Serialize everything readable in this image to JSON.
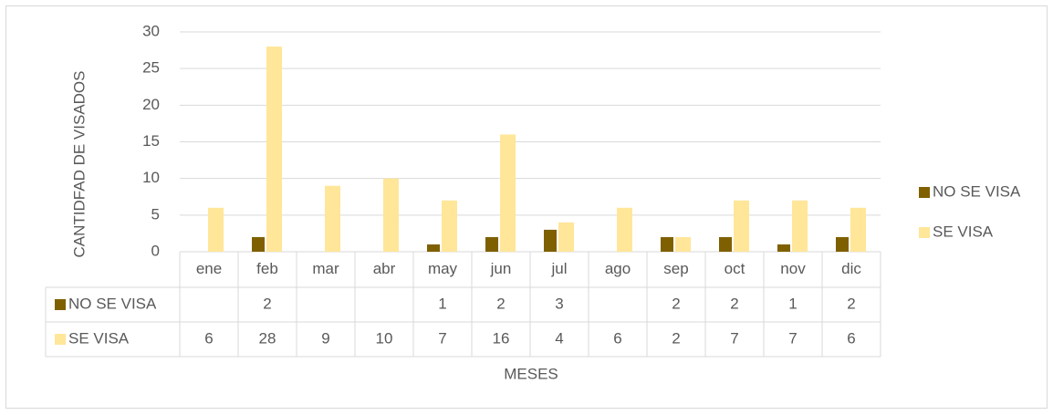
{
  "chart_data": {
    "type": "bar",
    "y_label": "CANTIDFAD DE VISADOS",
    "x_label": "MESES",
    "categories": [
      "ene",
      "feb",
      "mar",
      "abr",
      "may",
      "jun",
      "jul",
      "ago",
      "sep",
      "oct",
      "nov",
      "dic"
    ],
    "series": [
      {
        "name": "NO SE VISA",
        "color": "#7f6000",
        "values": [
          null,
          2,
          null,
          null,
          1,
          2,
          3,
          null,
          2,
          2,
          1,
          2
        ]
      },
      {
        "name": "SE VISA",
        "color": "#ffe699",
        "values": [
          6,
          28,
          9,
          10,
          7,
          16,
          4,
          6,
          2,
          7,
          7,
          6
        ]
      }
    ],
    "ylim": [
      0,
      30
    ],
    "yticks": [
      0,
      5,
      10,
      15,
      20,
      25,
      30
    ],
    "grid": true,
    "legend": "right",
    "data_table": true
  }
}
